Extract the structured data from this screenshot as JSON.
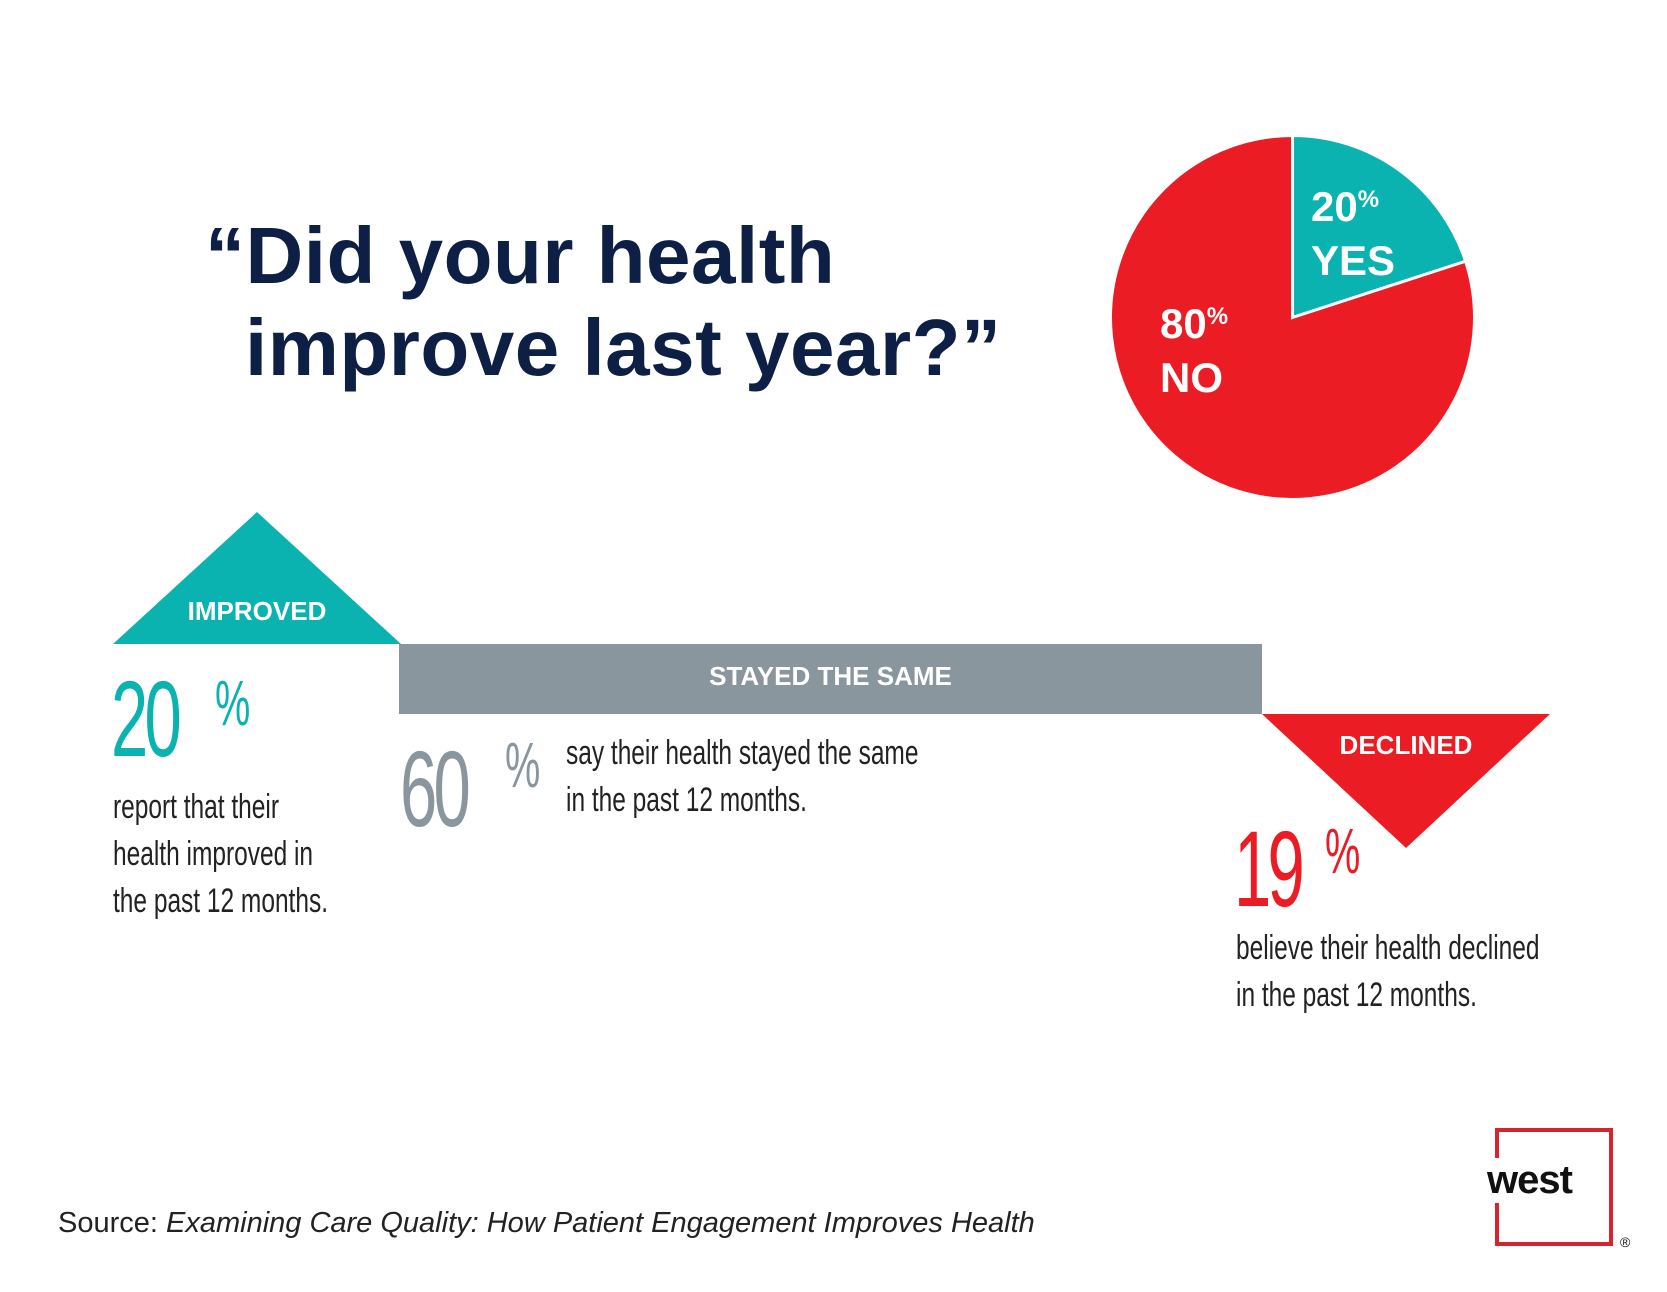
{
  "headline": {
    "line1": "“Did your health",
    "line2": "improve last year?”"
  },
  "colors": {
    "navy": "#0d1f44",
    "teal": "#0ab3b0",
    "red": "#ec1c24",
    "gray": "#8a969e",
    "gray_text": "#8a969e"
  },
  "chart_data": [
    {
      "type": "pie",
      "slices": [
        {
          "label": "YES",
          "value": 20,
          "value_label": "20",
          "unit": "%",
          "color": "#0ab3b0"
        },
        {
          "label": "NO",
          "value": 80,
          "value_label": "80",
          "unit": "%",
          "color": "#ec1c24"
        }
      ]
    }
  ],
  "outcomes": {
    "improved": {
      "label": "IMPROVED",
      "value": "20",
      "unit": "%",
      "description": [
        "report that their",
        "health improved in",
        "the past 12 months."
      ]
    },
    "same": {
      "label": "STAYED THE SAME",
      "value": "60",
      "unit": "%",
      "description": [
        "say their health stayed the same",
        "in the past 12 months."
      ]
    },
    "declined": {
      "label": "DECLINED",
      "value": "19",
      "unit": "%",
      "description": [
        "believe their health declined",
        "in the past 12 months."
      ]
    }
  },
  "source": {
    "prefix": "Source: ",
    "title": "Examining Care Quality: How Patient Engagement Improves Health"
  },
  "logo": {
    "text": "west",
    "registered": "®"
  }
}
